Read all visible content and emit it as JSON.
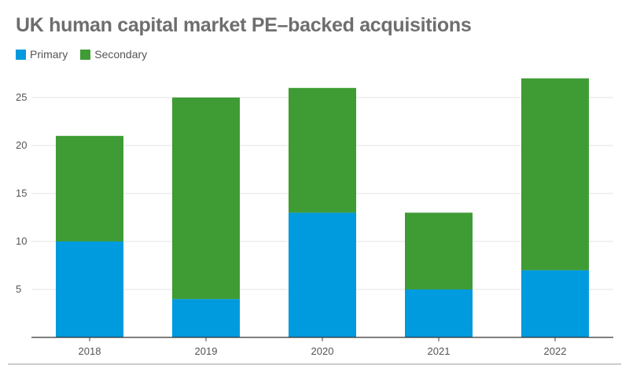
{
  "chart_data": {
    "type": "bar",
    "stacked": true,
    "title": "UK human capital market PE–backed acquisitions",
    "categories": [
      "2018",
      "2019",
      "2020",
      "2021",
      "2022"
    ],
    "series": [
      {
        "name": "Primary",
        "color": "#009ade",
        "values": [
          10,
          4,
          13,
          5,
          7
        ]
      },
      {
        "name": "Secondary",
        "color": "#3f9c35",
        "values": [
          11,
          21,
          13,
          8,
          20
        ]
      }
    ],
    "ylim": [
      0,
      29
    ],
    "yticks": [
      5,
      10,
      15,
      20,
      25
    ],
    "xlabel": "",
    "ylabel": "",
    "grid": true,
    "legend": "top-left"
  }
}
